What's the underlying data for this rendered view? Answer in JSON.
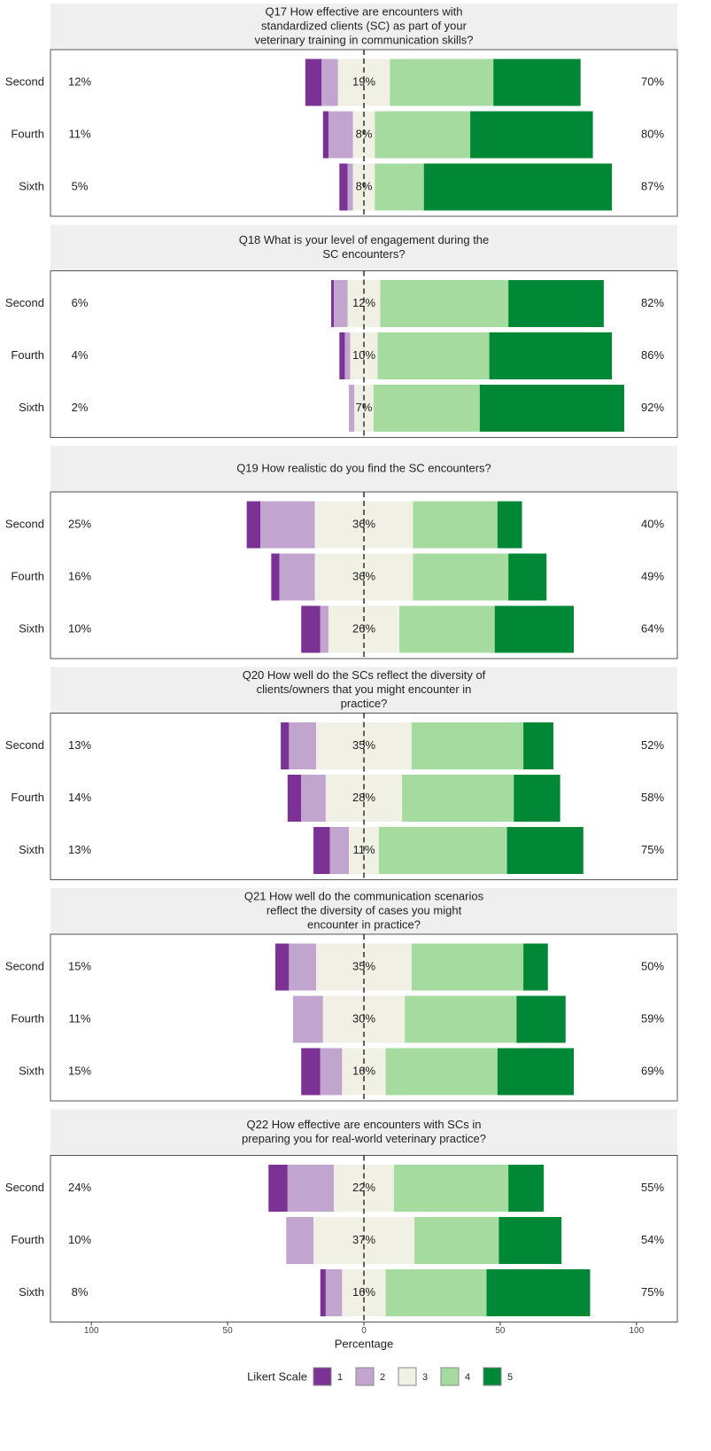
{
  "chart_data": {
    "type": "likert",
    "categories": [
      "Second",
      "Fourth",
      "Sixth"
    ],
    "xlabel": "Percentage",
    "legend_title": "Likert Scale",
    "xlim": [
      -115,
      115
    ],
    "xticks": [
      {
        "value": -100,
        "label": "100"
      },
      {
        "value": -50,
        "label": "50"
      },
      0,
      50,
      100
    ],
    "series": [
      {
        "name": "1",
        "color": "#7b3294"
      },
      {
        "name": "2",
        "color": "#c2a5cf"
      },
      {
        "name": "3",
        "color": "#f0f0e4"
      },
      {
        "name": "4",
        "color": "#a6dba0"
      },
      {
        "name": "5",
        "color": "#008837"
      }
    ],
    "panels": [
      {
        "title": [
          "Q17 How effective are encounters with",
          "standardized clients (SC) as part of your",
          "veterinary training in communication skills?"
        ],
        "values": [
          [
            6,
            6,
            19,
            38,
            32
          ],
          [
            2,
            9,
            8,
            35,
            45
          ],
          [
            3,
            2,
            8,
            18,
            69
          ]
        ],
        "low_labels": [
          "12%",
          "11%",
          "5%"
        ],
        "mid_labels": [
          "19%",
          "8%",
          "8%"
        ],
        "high_labels": [
          "70%",
          "80%",
          "87%"
        ]
      },
      {
        "title": [
          "Q18 What is your level of engagement during the",
          "SC encounters?"
        ],
        "values": [
          [
            1,
            5,
            12,
            47,
            35
          ],
          [
            2,
            2,
            10,
            41,
            45
          ],
          [
            0,
            2,
            7,
            39,
            53
          ]
        ],
        "low_labels": [
          "6%",
          "4%",
          "2%"
        ],
        "mid_labels": [
          "12%",
          "10%",
          "7%"
        ],
        "high_labels": [
          "82%",
          "86%",
          "92%"
        ]
      },
      {
        "title": [
          "Q19 How realistic do you find the SC encounters?"
        ],
        "values": [
          [
            5,
            20,
            36,
            31,
            9
          ],
          [
            3,
            13,
            36,
            35,
            14
          ],
          [
            7,
            3,
            26,
            35,
            29
          ]
        ],
        "low_labels": [
          "25%",
          "16%",
          "10%"
        ],
        "mid_labels": [
          "36%",
          "36%",
          "26%"
        ],
        "high_labels": [
          "40%",
          "49%",
          "64%"
        ]
      },
      {
        "title": [
          "Q20 How well do the SCs reflect the diversity of",
          "clients/owners that you might encounter in",
          "practice?"
        ],
        "values": [
          [
            3,
            10,
            35,
            41,
            11
          ],
          [
            5,
            9,
            28,
            41,
            17
          ],
          [
            6,
            7,
            11,
            47,
            28
          ]
        ],
        "low_labels": [
          "13%",
          "14%",
          "13%"
        ],
        "mid_labels": [
          "35%",
          "28%",
          "11%"
        ],
        "high_labels": [
          "52%",
          "58%",
          "75%"
        ]
      },
      {
        "title": [
          "Q21 How well do the communication scenarios",
          "reflect the diversity of cases you might",
          "encounter in practice?"
        ],
        "values": [
          [
            5,
            10,
            35,
            41,
            9
          ],
          [
            0,
            11,
            30,
            41,
            18
          ],
          [
            7,
            8,
            16,
            41,
            28
          ]
        ],
        "low_labels": [
          "15%",
          "11%",
          "15%"
        ],
        "mid_labels": [
          "35%",
          "30%",
          "16%"
        ],
        "high_labels": [
          "50%",
          "59%",
          "69%"
        ]
      },
      {
        "title": [
          "Q22 How effective are encounters with SCs in",
          "preparing you for real-world veterinary practice?"
        ],
        "values": [
          [
            7,
            17,
            22,
            42,
            13
          ],
          [
            0,
            10,
            37,
            31,
            23
          ],
          [
            2,
            6,
            16,
            37,
            38
          ]
        ],
        "low_labels": [
          "24%",
          "10%",
          "8%"
        ],
        "mid_labels": [
          "22%",
          "37%",
          "16%"
        ],
        "high_labels": [
          "55%",
          "54%",
          "75%"
        ]
      }
    ]
  }
}
